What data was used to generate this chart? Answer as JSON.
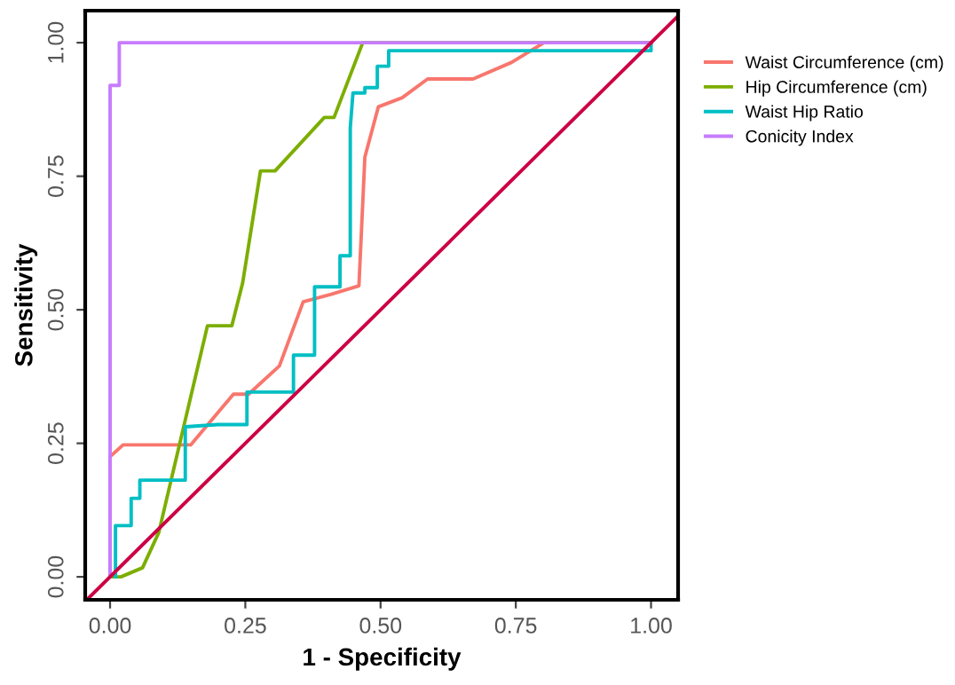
{
  "chart_data": {
    "type": "line",
    "xlabel": "1 - Specificity",
    "ylabel": "Sensitivity",
    "xlim": [
      -0.046,
      1.05
    ],
    "ylim": [
      -0.043,
      1.06
    ],
    "xticks": [
      {
        "value": 0,
        "label": "0.00"
      },
      {
        "value": 0.25,
        "label": "0.25"
      },
      {
        "value": 0.5,
        "label": "0.50"
      },
      {
        "value": 0.75,
        "label": "0.75"
      },
      {
        "value": 1,
        "label": "1.00"
      }
    ],
    "yticks": [
      {
        "value": 0,
        "label": "0.00"
      },
      {
        "value": 0.25,
        "label": "0.25"
      },
      {
        "value": 0.5,
        "label": "0.50"
      },
      {
        "value": 0.75,
        "label": "0.75"
      },
      {
        "value": 1,
        "label": "1.00"
      }
    ],
    "grid": false,
    "legend": "top right",
    "marker": "none",
    "line_style": "solid",
    "series": [
      {
        "name": "Waist Circumference (cm)",
        "color": "#f8766d",
        "x": [
          0.0,
          0.0,
          0.024,
          0.149,
          0.228,
          0.256,
          0.313,
          0.357,
          0.409,
          0.46,
          0.471,
          0.496,
          0.54,
          0.587,
          0.671,
          0.742,
          0.802,
          1.0
        ],
        "values": [
          0.0,
          0.225,
          0.247,
          0.247,
          0.342,
          0.342,
          0.395,
          0.515,
          0.529,
          0.545,
          0.786,
          0.88,
          0.897,
          0.932,
          0.932,
          0.963,
          1.0,
          1.0
        ]
      },
      {
        "name": "Hip Circumference (cm)",
        "color": "#7cae00",
        "x": [
          0.004,
          0.02,
          0.06,
          0.09,
          0.18,
          0.225,
          0.245,
          0.278,
          0.305,
          0.396,
          0.414,
          0.467,
          1.0
        ],
        "values": [
          0.0,
          0.0,
          0.017,
          0.083,
          0.47,
          0.47,
          0.55,
          0.76,
          0.76,
          0.86,
          0.86,
          1.0,
          1.0
        ]
      },
      {
        "name": "Waist Hip Ratio",
        "color": "#00bfc4",
        "x": [
          0.01,
          0.01,
          0.039,
          0.039,
          0.055,
          0.055,
          0.139,
          0.139,
          0.199,
          0.253,
          0.253,
          0.339,
          0.339,
          0.378,
          0.378,
          0.425,
          0.425,
          0.444,
          0.444,
          0.449,
          0.471,
          0.471,
          0.494,
          0.494,
          0.515,
          0.515,
          1.0,
          1.0
        ],
        "values": [
          0.0,
          0.096,
          0.096,
          0.147,
          0.147,
          0.181,
          0.181,
          0.281,
          0.285,
          0.285,
          0.346,
          0.346,
          0.415,
          0.415,
          0.543,
          0.543,
          0.601,
          0.601,
          0.841,
          0.906,
          0.906,
          0.916,
          0.916,
          0.956,
          0.956,
          0.985,
          0.985,
          1.0
        ]
      },
      {
        "name": "Conicity Index",
        "color": "#c77cff",
        "x": [
          0.0,
          0.0,
          0.017,
          0.017,
          1.0
        ],
        "values": [
          0.0,
          0.92,
          0.92,
          1.0,
          1.0
        ]
      },
      {
        "color": "#cc0044",
        "x": [
          -0.043,
          1.05
        ],
        "values": [
          -0.043,
          1.05
        ]
      }
    ]
  }
}
